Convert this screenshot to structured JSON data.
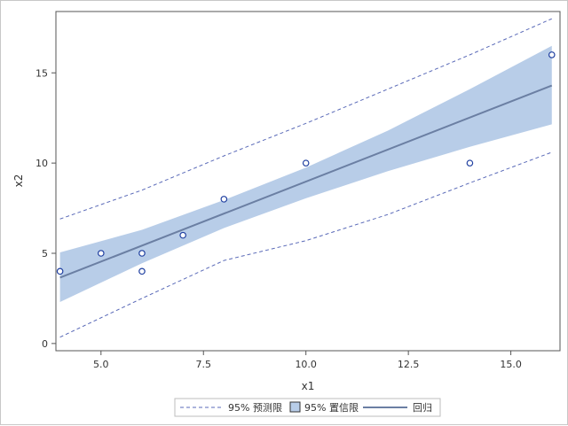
{
  "chart_data": {
    "type": "scatter",
    "xlabel": "x1",
    "ylabel": "x2",
    "xlim": [
      3.9,
      16.2
    ],
    "ylim": [
      -0.4,
      18.4
    ],
    "xticks": [
      {
        "value": 5.0,
        "label": "5.0"
      },
      {
        "value": 7.5,
        "label": "7.5"
      },
      {
        "value": 10.0,
        "label": "10.0"
      },
      {
        "value": 12.5,
        "label": "12.5"
      },
      {
        "value": 15.0,
        "label": "15.0"
      }
    ],
    "yticks": [
      {
        "value": 0,
        "label": "0"
      },
      {
        "value": 5,
        "label": "5"
      },
      {
        "value": 10,
        "label": "10"
      },
      {
        "value": 15,
        "label": "15"
      }
    ],
    "points": [
      {
        "x": 4,
        "y": 4
      },
      {
        "x": 5,
        "y": 5
      },
      {
        "x": 6,
        "y": 5
      },
      {
        "x": 6,
        "y": 4
      },
      {
        "x": 7,
        "y": 6
      },
      {
        "x": 8,
        "y": 8
      },
      {
        "x": 10,
        "y": 10
      },
      {
        "x": 14,
        "y": 10
      },
      {
        "x": 16,
        "y": 16
      }
    ],
    "regression": {
      "x0": 4,
      "y0": 3.65,
      "x1": 16,
      "y1": 14.3
    },
    "confidence_band": [
      {
        "x": 4,
        "lower": 2.3,
        "upper": 5.05
      },
      {
        "x": 6,
        "lower": 4.45,
        "upper": 6.3
      },
      {
        "x": 8,
        "lower": 6.4,
        "upper": 7.95
      },
      {
        "x": 10,
        "lower": 8.05,
        "upper": 9.75
      },
      {
        "x": 12,
        "lower": 9.55,
        "upper": 11.8
      },
      {
        "x": 14,
        "lower": 10.9,
        "upper": 14.1
      },
      {
        "x": 16,
        "lower": 12.15,
        "upper": 16.5
      }
    ],
    "prediction_band": [
      {
        "x": 4,
        "lower": 0.35,
        "upper": 6.9
      },
      {
        "x": 6,
        "lower": 2.5,
        "upper": 8.5
      },
      {
        "x": 8,
        "lower": 4.6,
        "upper": 10.4
      },
      {
        "x": 10,
        "lower": 5.7,
        "upper": 12.2
      },
      {
        "x": 12,
        "lower": 7.15,
        "upper": 14.1
      },
      {
        "x": 14,
        "lower": 8.9,
        "upper": 16.0
      },
      {
        "x": 16,
        "lower": 10.6,
        "upper": 18.0
      }
    ],
    "legend": {
      "position": "bottom",
      "items": [
        {
          "key": "prediction",
          "label": "95% 预测限"
        },
        {
          "key": "confidence",
          "label": "95% 置信限"
        },
        {
          "key": "regression",
          "label": "回归"
        }
      ]
    },
    "grid": false,
    "colors": {
      "band_fill": "#b8cde8",
      "regression_line": "#6b7fa3",
      "prediction_line": "#5a6ab8",
      "point_stroke": "#1f3fa0",
      "axis": "#555555"
    }
  }
}
